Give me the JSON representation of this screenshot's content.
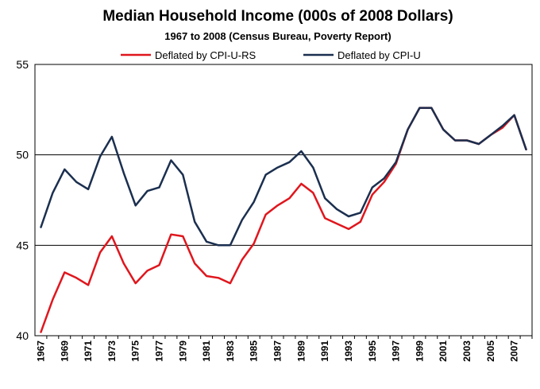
{
  "chart_data": {
    "type": "line",
    "title": "Median Household Income (000s of 2008 Dollars)",
    "subtitle": "1967 to 2008 (Census Bureau, Poverty Report)",
    "xlabel": "",
    "ylabel": "",
    "ylim": [
      40,
      55
    ],
    "yticks": [
      40,
      45,
      50,
      55
    ],
    "gridlines": [
      45,
      50
    ],
    "legend_position": "top",
    "x": [
      1967,
      1968,
      1969,
      1970,
      1971,
      1972,
      1973,
      1974,
      1975,
      1976,
      1977,
      1978,
      1979,
      1980,
      1981,
      1982,
      1983,
      1984,
      1985,
      1986,
      1987,
      1988,
      1989,
      1990,
      1991,
      1992,
      1993,
      1994,
      1995,
      1996,
      1997,
      1998,
      1999,
      2000,
      2001,
      2002,
      2003,
      2004,
      2005,
      2006,
      2007,
      2008
    ],
    "x_tick_labels": [
      "1967",
      "1969",
      "1971",
      "1973",
      "1975",
      "1977",
      "1979",
      "1981",
      "1983",
      "1985",
      "1987",
      "1989",
      "1991",
      "1993",
      "1995",
      "1997",
      "1999",
      "2001",
      "2003",
      "2005",
      "2007"
    ],
    "series": [
      {
        "name": "Deflated by CPI-U-RS",
        "color": "#e0161d",
        "values": [
          40.2,
          42.0,
          43.5,
          43.2,
          42.8,
          44.6,
          45.5,
          44.0,
          42.9,
          43.6,
          43.9,
          45.6,
          45.5,
          44.0,
          43.3,
          43.2,
          42.9,
          44.2,
          45.1,
          46.7,
          47.2,
          47.6,
          48.4,
          47.9,
          46.5,
          46.2,
          45.9,
          46.3,
          47.8,
          48.5,
          49.5,
          51.4,
          52.6,
          52.6,
          51.4,
          50.8,
          50.8,
          50.6,
          51.1,
          51.5,
          52.2,
          50.3
        ]
      },
      {
        "name": "Deflated by CPI-U",
        "color": "#1b2f4f",
        "values": [
          46.0,
          47.9,
          49.2,
          48.5,
          48.1,
          49.9,
          51.0,
          49.0,
          47.2,
          48.0,
          48.2,
          49.7,
          48.9,
          46.3,
          45.2,
          45.0,
          45.0,
          46.4,
          47.4,
          48.9,
          49.3,
          49.6,
          50.2,
          49.3,
          47.6,
          47.0,
          46.6,
          46.8,
          48.2,
          48.7,
          49.6,
          51.4,
          52.6,
          52.6,
          51.4,
          50.8,
          50.8,
          50.6,
          51.1,
          51.6,
          52.2,
          50.3
        ]
      }
    ]
  }
}
